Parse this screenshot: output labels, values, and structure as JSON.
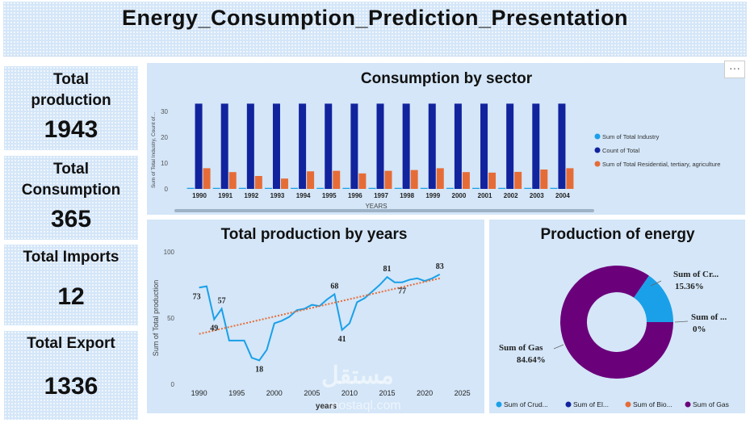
{
  "dashboard": {
    "title": "Energy_Consumption_Prediction_Presentation",
    "more_label": "···"
  },
  "kpis": [
    {
      "label_lines": [
        "Total",
        "production"
      ],
      "value": "1943"
    },
    {
      "label_lines": [
        "Total",
        "Consumption"
      ],
      "value": "365"
    },
    {
      "label_lines": [
        "Total Imports"
      ],
      "value": "12"
    },
    {
      "label_lines": [
        "Total Export"
      ],
      "value": "1336"
    }
  ],
  "watermark": {
    "text": "مستقل",
    "sub": "mostaql.com"
  },
  "chart_data": [
    {
      "type": "bar",
      "title": "Consumption by sector",
      "xlabel": "YEARS",
      "ylabel": "Sum of Total Industry, Count of...",
      "ylim": [
        0,
        35
      ],
      "yticks": [
        0,
        10,
        20,
        30
      ],
      "categories": [
        "1990",
        "1991",
        "1992",
        "1993",
        "1994",
        "1995",
        "1996",
        "1997",
        "1998",
        "1999",
        "2000",
        "2001",
        "2002",
        "2003",
        "2004"
      ],
      "series": [
        {
          "name": "Sum of Total Industry",
          "color": "#1aa0e8",
          "values": [
            0.4,
            0.4,
            0.4,
            0.4,
            0.4,
            0.4,
            0.4,
            0.4,
            0.4,
            0.4,
            0.4,
            0.4,
            0.4,
            0.4,
            0.4
          ]
        },
        {
          "name": "Count of Total",
          "color": "#12239e",
          "values": [
            33,
            33,
            33,
            33,
            33,
            33,
            33,
            33,
            33,
            33,
            33,
            33,
            33,
            33,
            33
          ]
        },
        {
          "name": "Sum of Total Residential, tertiary, agriculture",
          "color": "#e66c37",
          "values": [
            8,
            6.5,
            5,
            4,
            6.8,
            7,
            6,
            7,
            7.3,
            8,
            6.5,
            6.3,
            6.6,
            7.5,
            8
          ]
        }
      ],
      "legend_position": "right"
    },
    {
      "type": "line",
      "title": "Total production by years",
      "xlabel": "years",
      "ylabel": "Sum of Total production",
      "xlim": [
        1988,
        2026
      ],
      "ylim": [
        0,
        100
      ],
      "xticks": [
        1990,
        1995,
        2000,
        2005,
        2010,
        2015,
        2020,
        2025
      ],
      "yticks": [
        0,
        50,
        100
      ],
      "x": [
        1990,
        1991,
        1992,
        1993,
        1994,
        1995,
        1996,
        1997,
        1998,
        1999,
        2000,
        2001,
        2002,
        2003,
        2004,
        2005,
        2006,
        2007,
        2008,
        2009,
        2010,
        2011,
        2012,
        2013,
        2014,
        2015,
        2016,
        2017,
        2018,
        2019,
        2020,
        2021,
        2022
      ],
      "y": [
        73,
        74,
        49,
        57,
        33,
        33,
        33,
        20,
        18,
        26,
        46,
        48,
        51,
        56,
        57,
        60,
        59,
        64,
        68,
        41,
        46,
        62,
        65,
        70,
        75,
        81,
        77,
        77,
        79,
        80,
        78,
        80,
        83
      ],
      "data_labels": [
        {
          "x": 1990,
          "y": 73,
          "text": "73"
        },
        {
          "x": 1992,
          "y": 49,
          "text": "49"
        },
        {
          "x": 1993,
          "y": 57,
          "text": "57"
        },
        {
          "x": 1998,
          "y": 18,
          "text": "18"
        },
        {
          "x": 2008,
          "y": 68,
          "text": "68"
        },
        {
          "x": 2009,
          "y": 41,
          "text": "41"
        },
        {
          "x": 2015,
          "y": 81,
          "text": "81"
        },
        {
          "x": 2017,
          "y": 77,
          "text": "77"
        },
        {
          "x": 2022,
          "y": 83,
          "text": "83"
        }
      ],
      "trend": {
        "x": [
          1990,
          2022
        ],
        "y": [
          38,
          80
        ],
        "color": "#e66c37"
      },
      "line_color": "#1aa0e8",
      "grid": false
    },
    {
      "type": "pie",
      "title": "Production of energy",
      "donut": true,
      "slices": [
        {
          "name": "Sum of Crude oil",
          "value": 15.36,
          "color": "#1aa0e8",
          "label": "Sum of Cr...",
          "pct": "15.36%"
        },
        {
          "name": "Sum of Electricity",
          "value": 0,
          "color": "#12239e",
          "label": "Sum of ...",
          "pct": "0%"
        },
        {
          "name": "Sum of Biofuels",
          "value": 0,
          "color": "#e66c37",
          "label": "",
          "pct": ""
        },
        {
          "name": "Sum of Gas",
          "value": 84.64,
          "color": "#6b007b",
          "label": "Sum of Gas",
          "pct": "84.64%"
        }
      ],
      "legend": [
        "Sum of      Crud...",
        "Sum of      El...",
        "Sum of Bio...",
        "Sum of Gas"
      ],
      "legend_position": "bottom"
    }
  ]
}
